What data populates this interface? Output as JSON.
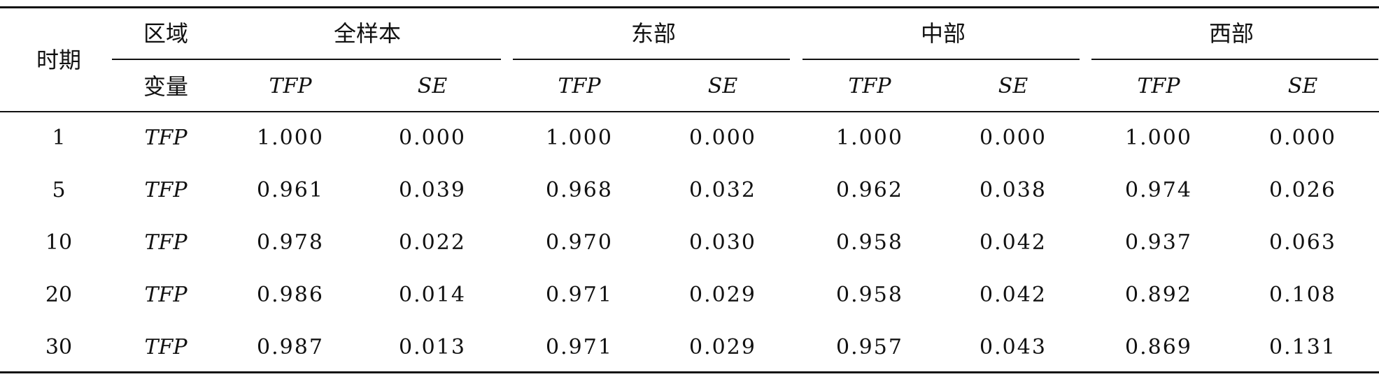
{
  "table": {
    "header": {
      "period": "时期",
      "region": "区域",
      "variable": "变量",
      "groups": [
        "全样本",
        "东部",
        "中部",
        "西部"
      ],
      "subcols": [
        "TFP",
        "SE",
        "TFP",
        "SE",
        "TFP",
        "SE",
        "TFP",
        "SE"
      ]
    },
    "rows": [
      {
        "period": "1",
        "variable": "TFP",
        "values": [
          "1.000",
          "0.000",
          "1.000",
          "0.000",
          "1.000",
          "0.000",
          "1.000",
          "0.000"
        ]
      },
      {
        "period": "5",
        "variable": "TFP",
        "values": [
          "0.961",
          "0.039",
          "0.968",
          "0.032",
          "0.962",
          "0.038",
          "0.974",
          "0.026"
        ]
      },
      {
        "period": "10",
        "variable": "TFP",
        "values": [
          "0.978",
          "0.022",
          "0.970",
          "0.030",
          "0.958",
          "0.042",
          "0.937",
          "0.063"
        ]
      },
      {
        "period": "20",
        "variable": "TFP",
        "values": [
          "0.986",
          "0.014",
          "0.971",
          "0.029",
          "0.958",
          "0.042",
          "0.892",
          "0.108"
        ]
      },
      {
        "period": "30",
        "variable": "TFP",
        "values": [
          "0.987",
          "0.013",
          "0.971",
          "0.029",
          "0.957",
          "0.043",
          "0.869",
          "0.131"
        ]
      }
    ]
  }
}
